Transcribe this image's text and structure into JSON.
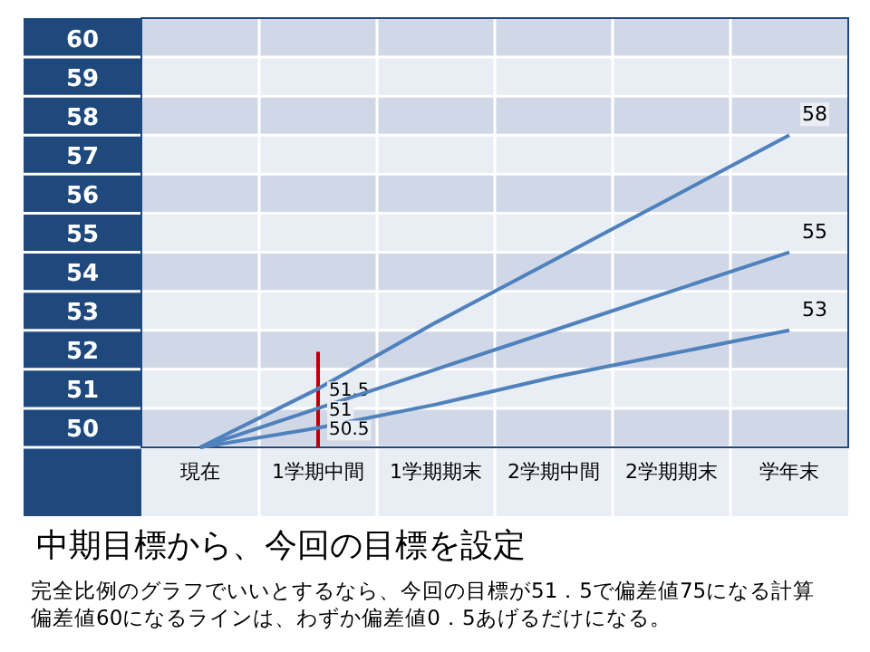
{
  "chart_data": {
    "type": "line",
    "title": "中期目標から、今回の目標を設定",
    "annotations": [
      "完全比例のグラフでいいとするなら、今回の目標が51．5で偏差値75になる計算",
      "偏差値60になるラインは、わずか偏差値0．5あげるだけになる。"
    ],
    "categories": [
      "現在",
      "1学期中間",
      "1学期期末",
      "2学期中間",
      "2学期期末",
      "学年末"
    ],
    "series": [
      {
        "color": "#4f81bd",
        "values": [
          50,
          51.5,
          53.2,
          54.8,
          56.4,
          58
        ],
        "value_labels": [
          null,
          "51.5",
          null,
          null,
          null,
          "58"
        ]
      },
      {
        "color": "#4f81bd",
        "values": [
          50,
          51,
          52,
          53,
          54,
          55
        ],
        "value_labels": [
          null,
          "51",
          null,
          null,
          null,
          "55"
        ]
      },
      {
        "color": "#4f81bd",
        "values": [
          50,
          50.5,
          51.1,
          51.8,
          52.4,
          53
        ],
        "value_labels": [
          null,
          "50.5",
          null,
          null,
          null,
          "53"
        ]
      }
    ],
    "ylim": [
      50,
      61
    ],
    "yticks": [
      50,
      51,
      52,
      53,
      54,
      55,
      56,
      57,
      58,
      59,
      60
    ],
    "grid": true,
    "ref_lines": [
      {
        "axis": "x",
        "value": "1学期中間",
        "color": "#c00000"
      }
    ]
  }
}
